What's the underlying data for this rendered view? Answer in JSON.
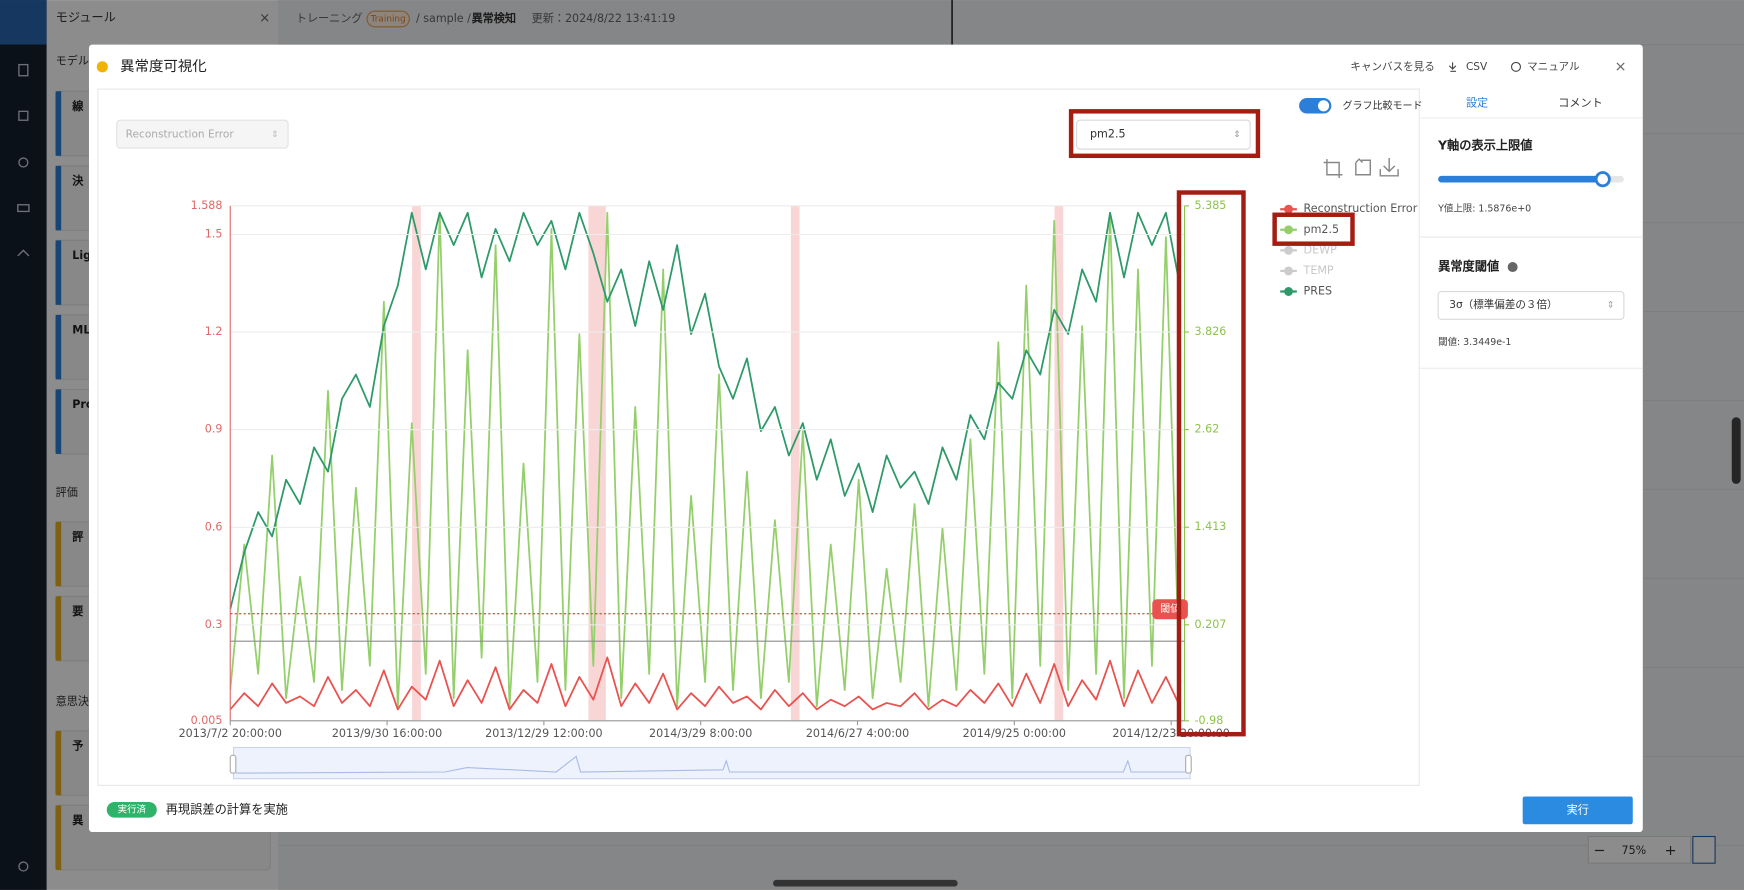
{
  "background": {
    "panel_title": "モジュール",
    "section_model": "モデル",
    "model_items": [
      "線",
      "決",
      "Lig",
      "ML",
      "Pro"
    ],
    "section_eval": "評価",
    "eval_items": [
      "評",
      "要"
    ],
    "section_decision": "意思決",
    "decision_items": [
      "予",
      "異"
    ],
    "breadcrumb": {
      "root": "トレーニング",
      "badge": "Training",
      "path": "/ sample /",
      "current": "異常検知",
      "updated": "更新：2024/8/22 13:41:19"
    },
    "zoom": "75%"
  },
  "modal": {
    "title": "異常度可視化",
    "actions": [
      "キャンバスを見る",
      "CSV",
      "マニュアル"
    ],
    "left_select": "Reconstruction Error",
    "right_select": "pm2.5",
    "toggle": "グラフ比較モード",
    "tabs": [
      "設定",
      "コメント"
    ],
    "settings": {
      "ymax_title": "Y軸の表示上限値",
      "ymax_value": "Y値上限: 1.5876e+0",
      "threshold_title": "異常度閾値",
      "threshold_method": "3σ（標準偏差の３倍）",
      "threshold_value": "閾値: 3.3449e-1"
    },
    "footer": {
      "status": "実行済",
      "message": "再現誤差の計算を実施",
      "run": "実行"
    }
  },
  "chart_data": {
    "type": "line",
    "x": [
      "2013/7/2 20:00:00",
      "2013/7/10 20:00:00",
      "2013/7/18 20:00:00",
      "2013/7/26 20:00:00",
      "2013/8/3 20:00:00",
      "2013/8/11 20:00:00",
      "2013/8/19 20:00:00",
      "2013/8/27 20:00:00",
      "2013/9/4 20:00:00",
      "2013/9/12 20:00:00",
      "2013/9/20 20:00:00",
      "2013/9/28 20:00:00",
      "2013/10/6 20:00:00",
      "2013/10/14 20:00:00",
      "2013/10/22 20:00:00",
      "2013/10/30 20:00:00",
      "2013/11/7 20:00:00",
      "2013/11/15 20:00:00",
      "2013/11/23 20:00:00",
      "2013/12/1 20:00:00",
      "2013/12/9 20:00:00",
      "2013/12/17 20:00:00",
      "2013/12/25 20:00:00",
      "2014/1/2 20:00:00",
      "2014/1/10 20:00:00",
      "2014/1/18 20:00:00",
      "2014/1/26 20:00:00",
      "2014/2/3 20:00:00",
      "2014/2/11 20:00:00",
      "2014/2/19 20:00:00",
      "2014/2/27 20:00:00",
      "2014/3/7 20:00:00",
      "2014/3/15 20:00:00",
      "2014/3/23 20:00:00",
      "2014/3/31 20:00:00",
      "2014/4/8 20:00:00",
      "2014/4/16 20:00:00",
      "2014/4/24 20:00:00",
      "2014/5/2 20:00:00",
      "2014/5/10 20:00:00",
      "2014/5/18 20:00:00",
      "2014/5/26 20:00:00",
      "2014/6/3 20:00:00",
      "2014/6/11 20:00:00",
      "2014/6/19 20:00:00",
      "2014/6/27 20:00:00",
      "2014/7/5 20:00:00",
      "2014/7/13 20:00:00",
      "2014/7/21 20:00:00",
      "2014/7/29 20:00:00",
      "2014/8/6 20:00:00",
      "2014/8/14 20:00:00",
      "2014/8/22 20:00:00",
      "2014/8/30 20:00:00",
      "2014/9/7 20:00:00",
      "2014/9/15 20:00:00",
      "2014/9/23 20:00:00",
      "2014/10/1 20:00:00",
      "2014/10/9 20:00:00",
      "2014/10/17 20:00:00",
      "2014/10/25 20:00:00",
      "2014/11/2 20:00:00",
      "2014/11/10 20:00:00",
      "2014/11/18 20:00:00",
      "2014/11/26 20:00:00",
      "2014/12/4 20:00:00",
      "2014/12/12 20:00:00",
      "2014/12/20 20:00:00",
      "2014/12/28 20:00:00"
    ],
    "xlim": [
      "2013/7/2 20:00:00",
      "2014/12/31 12:00:00"
    ],
    "xticks": [
      "2013/7/2 20:00:00",
      "2013/9/30 16:00:00",
      "2013/12/29 12:00:00",
      "2014/3/29 8:00:00",
      "2014/6/27 4:00:00",
      "2014/9/25 0:00:00",
      "2014/12/23 20:00:00"
    ],
    "ylim": [
      0.005,
      1.588
    ],
    "yticks": [
      1.588,
      1.5,
      1.2,
      0.9,
      0.6,
      0.3,
      0.005
    ],
    "y2lim": [
      -0.98,
      5.385
    ],
    "y2ticks": [
      5.385,
      3.826,
      2.62,
      1.413,
      0.207,
      -0.98
    ],
    "grid": true,
    "series": [
      {
        "name": "Reconstruction Error",
        "color": "#e8524f",
        "axis": "y",
        "values": [
          0.04,
          0.09,
          0.05,
          0.12,
          0.06,
          0.08,
          0.05,
          0.14,
          0.06,
          0.1,
          0.05,
          0.16,
          0.04,
          0.11,
          0.07,
          0.19,
          0.05,
          0.13,
          0.06,
          0.17,
          0.04,
          0.1,
          0.06,
          0.18,
          0.05,
          0.14,
          0.07,
          0.2,
          0.05,
          0.12,
          0.06,
          0.15,
          0.04,
          0.09,
          0.05,
          0.11,
          0.06,
          0.08,
          0.04,
          0.1,
          0.05,
          0.09,
          0.04,
          0.07,
          0.05,
          0.08,
          0.04,
          0.06,
          0.05,
          0.09,
          0.04,
          0.07,
          0.05,
          0.1,
          0.06,
          0.12,
          0.05,
          0.15,
          0.06,
          0.18,
          0.05,
          0.13,
          0.07,
          0.19,
          0.05,
          0.16,
          0.06,
          0.14,
          0.05
        ]
      },
      {
        "name": "pm2.5",
        "color": "#95cf6b",
        "axis": "y2",
        "values": [
          -0.6,
          1.2,
          -0.4,
          2.3,
          -0.7,
          0.8,
          -0.5,
          3.1,
          -0.6,
          1.9,
          -0.3,
          4.2,
          -0.8,
          2.7,
          -0.4,
          5.3,
          -0.7,
          3.6,
          -0.2,
          4.9,
          -0.8,
          2.2,
          -0.5,
          5.1,
          -0.6,
          3.8,
          -0.3,
          5.3,
          -0.7,
          2.9,
          -0.4,
          4.6,
          -0.8,
          1.8,
          -0.5,
          3.3,
          -0.6,
          2.1,
          -0.7,
          1.5,
          -0.5,
          2.6,
          -0.8,
          1.2,
          -0.6,
          2.0,
          -0.7,
          0.9,
          -0.5,
          1.7,
          -0.8,
          1.4,
          -0.6,
          2.5,
          -0.4,
          3.7,
          -0.7,
          4.4,
          -0.3,
          5.2,
          -0.6,
          3.9,
          -0.4,
          5.3,
          -0.7,
          4.6,
          -0.3,
          5.0,
          -0.6
        ]
      },
      {
        "name": "PRES",
        "color": "#2e9a6a",
        "axis": "y2",
        "values": [
          0.4,
          1.1,
          1.6,
          1.3,
          2.0,
          1.7,
          2.4,
          2.1,
          3.0,
          3.3,
          2.9,
          3.9,
          4.4,
          5.3,
          4.6,
          5.3,
          4.9,
          5.3,
          4.5,
          5.1,
          4.7,
          5.3,
          4.9,
          5.2,
          4.6,
          5.3,
          4.8,
          4.2,
          4.6,
          3.9,
          4.7,
          4.1,
          4.9,
          3.8,
          4.3,
          3.4,
          3.0,
          3.5,
          2.6,
          2.9,
          2.3,
          2.7,
          2.0,
          2.5,
          1.8,
          2.2,
          1.6,
          2.3,
          1.9,
          2.1,
          1.7,
          2.4,
          2.0,
          2.8,
          2.5,
          3.2,
          3.0,
          3.6,
          3.3,
          4.1,
          3.8,
          4.6,
          4.2,
          5.3,
          4.5,
          5.3,
          4.9,
          5.3,
          4.4
        ]
      }
    ],
    "inactive_series": [
      "DEWP",
      "TEMP"
    ],
    "inactive_color": "#cccccc",
    "threshold": {
      "value": 0.33449,
      "label": "閾値",
      "color": "#e8524f"
    },
    "reference_line": 0.25,
    "anomaly_ranges": [
      [
        "2013/10/15 0:00:00",
        "2013/10/20 0:00:00"
      ],
      [
        "2014/1/24 0:00:00",
        "2014/2/3 0:00:00"
      ],
      [
        "2014/5/20 0:00:00",
        "2014/5/25 0:00:00"
      ],
      [
        "2014/10/18 0:00:00",
        "2014/10/23 0:00:00"
      ]
    ],
    "anomaly_color": "#f9d6d6"
  }
}
